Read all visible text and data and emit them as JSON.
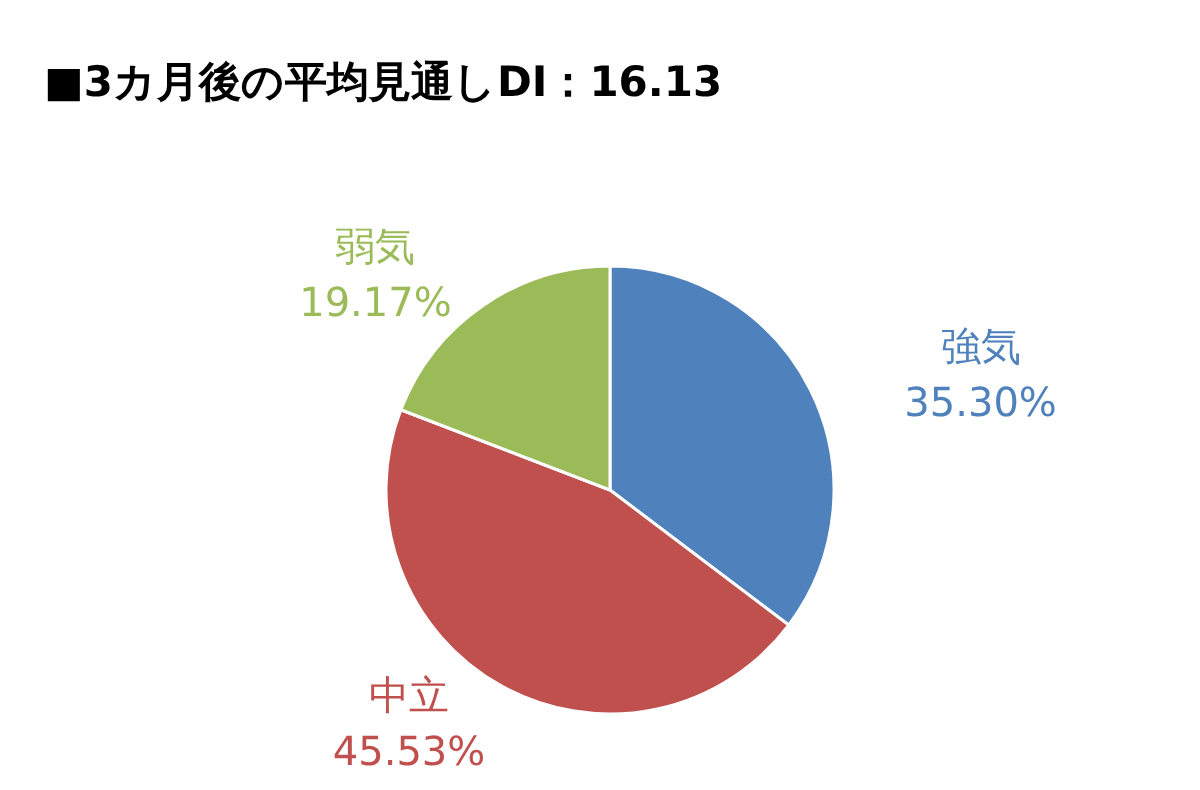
{
  "chart_data": {
    "type": "pie",
    "title": "■3カ月後の平均見通しDI：16.13",
    "categories": [
      "強気",
      "中立",
      "弱気"
    ],
    "values": [
      35.3,
      45.53,
      19.17
    ],
    "value_labels": [
      "35.30%",
      "45.53%",
      "19.17%"
    ],
    "colors": [
      "#4f81bd",
      "#c0504d",
      "#9bbb59"
    ]
  }
}
